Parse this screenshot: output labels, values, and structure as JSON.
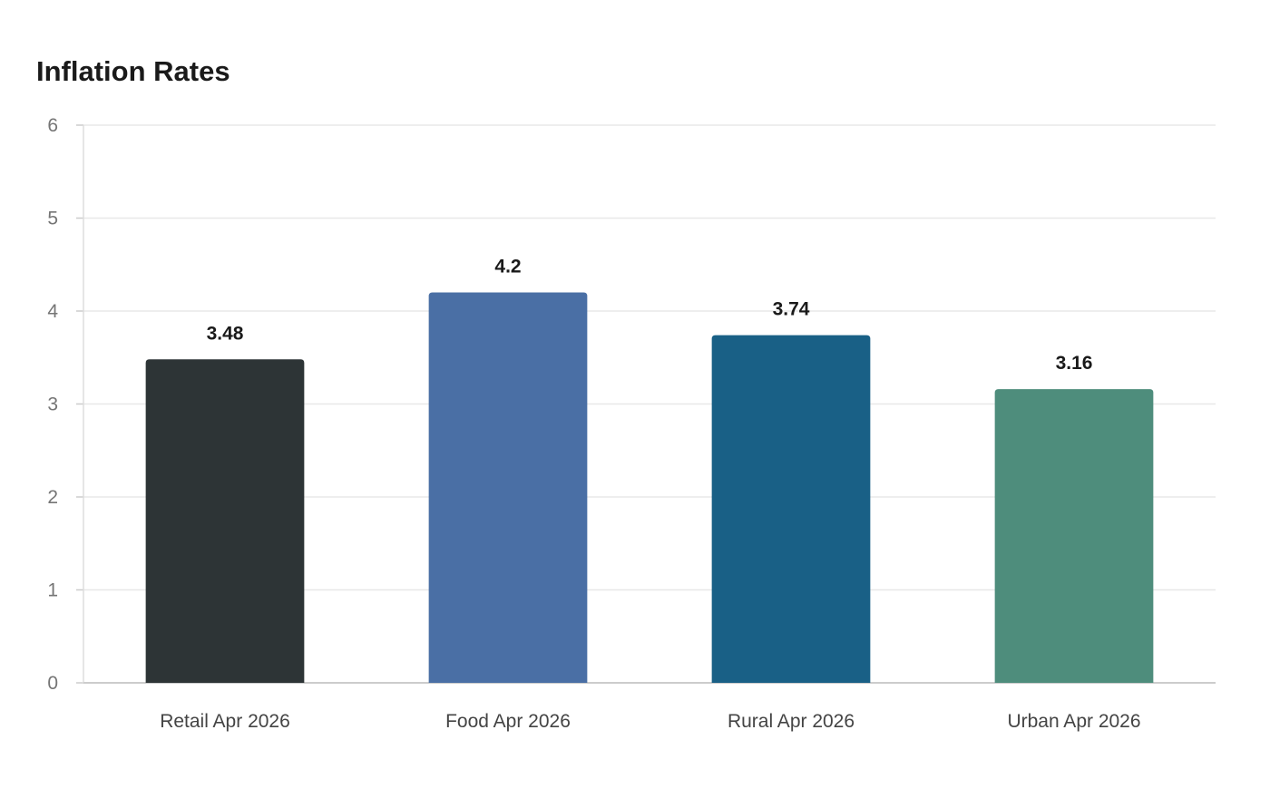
{
  "chart_data": {
    "type": "bar",
    "title": "Inflation Rates",
    "categories": [
      "Retail Apr 2026",
      "Food Apr 2026",
      "Rural Apr 2026",
      "Urban Apr 2026"
    ],
    "values": [
      3.48,
      4.2,
      3.74,
      3.16
    ],
    "value_labels": [
      "3.48",
      "4.2",
      "3.74",
      "3.16"
    ],
    "colors": [
      "#2d3436",
      "#4a6fa5",
      "#196086",
      "#4e8d7c"
    ],
    "ylim": [
      0,
      6
    ],
    "yticks": [
      "0",
      "1",
      "2",
      "3",
      "4",
      "5",
      "6"
    ],
    "grid": true,
    "legend": "none"
  }
}
